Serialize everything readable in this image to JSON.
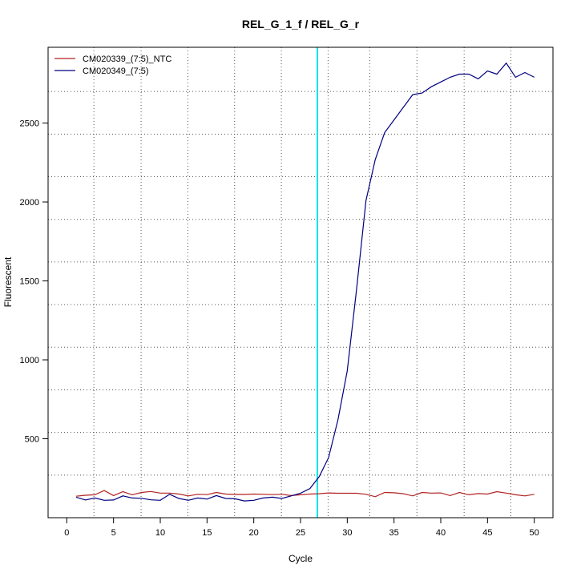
{
  "chart_data": {
    "type": "line",
    "title": "REL_G_1_f / REL_G_r",
    "xlabel": "Cycle",
    "ylabel": "Fluorescent",
    "xlim": [
      -2,
      52
    ],
    "ylim": [
      0,
      2980
    ],
    "xticks": [
      0,
      5,
      10,
      15,
      20,
      25,
      30,
      35,
      40,
      45,
      50
    ],
    "yticks": [
      500,
      1000,
      1500,
      2000,
      2500
    ],
    "grid_x": [
      2.9,
      7.95,
      12.95,
      17.95,
      22.95,
      27.95,
      32.4,
      37.45,
      42.5,
      47.5
    ],
    "grid_y": [
      270,
      540,
      810,
      1080,
      1350,
      1620,
      1890,
      2160,
      2430,
      2700
    ],
    "legend_position": "top-left",
    "threshold_cycle": 26.8,
    "threshold_color": "#00e5e5",
    "series": [
      {
        "name": "CM020339_(7:5)_NTC",
        "color": "#b22222",
        "x": [
          1,
          2,
          3,
          4,
          5,
          6,
          7,
          8,
          9,
          10,
          11,
          12,
          13,
          14,
          15,
          16,
          17,
          18,
          19,
          20,
          21,
          22,
          23,
          24,
          25,
          26,
          27,
          28,
          29,
          30,
          31,
          32,
          33,
          34,
          35,
          36,
          37,
          38,
          39,
          40,
          41,
          42,
          43,
          44,
          45,
          46,
          47,
          48,
          49,
          50
        ],
        "y": [
          136,
          142,
          145,
          172,
          140,
          165,
          145,
          160,
          166,
          156,
          156,
          150,
          138,
          148,
          146,
          160,
          150,
          147,
          147,
          150,
          148,
          146,
          148,
          140,
          145,
          150,
          152,
          157,
          155,
          155,
          155,
          148,
          133,
          160,
          158,
          152,
          138,
          160,
          156,
          157,
          140,
          160,
          145,
          153,
          150,
          165,
          156,
          145,
          138,
          148
        ]
      },
      {
        "name": "CM020349_(7:5)",
        "color": "#000080",
        "x": [
          1,
          2,
          3,
          4,
          5,
          6,
          7,
          8,
          9,
          10,
          11,
          12,
          13,
          14,
          15,
          16,
          17,
          18,
          19,
          20,
          21,
          22,
          23,
          24,
          25,
          26,
          27,
          28,
          29,
          30,
          31,
          32,
          33,
          34,
          35,
          36,
          37,
          38,
          39,
          40,
          41,
          42,
          43,
          44,
          45,
          46,
          47,
          48,
          49,
          50
        ],
        "y": [
          130,
          112,
          125,
          110,
          112,
          138,
          125,
          123,
          113,
          110,
          148,
          122,
          110,
          125,
          118,
          140,
          122,
          120,
          106,
          110,
          125,
          130,
          122,
          138,
          155,
          185,
          260,
          380,
          620,
          930,
          1450,
          2010,
          2270,
          2440,
          2520,
          2600,
          2680,
          2690,
          2730,
          2760,
          2790,
          2810,
          2810,
          2780,
          2830,
          2810,
          2880,
          2790,
          2820,
          2790
        ]
      }
    ]
  }
}
